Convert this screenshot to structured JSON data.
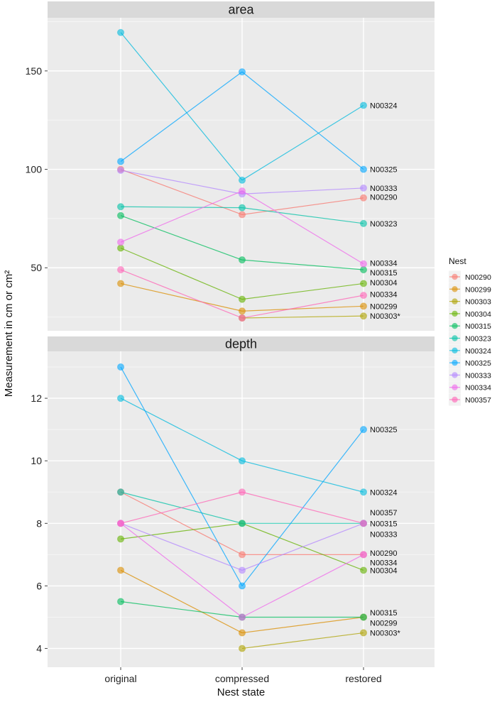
{
  "chart_data": {
    "type": "line",
    "xlabel": "Nest state",
    "ylabel": "Measurement in cm or cm²",
    "categories": [
      "original",
      "compressed",
      "restored"
    ],
    "legend": {
      "title": "Nest",
      "position": "right",
      "entries": [
        "N00290",
        "N00299",
        "N00303",
        "N00304",
        "N00315",
        "N00323",
        "N00324",
        "N00325",
        "N00333",
        "N00334",
        "N00357"
      ]
    },
    "colors": {
      "N00290": "#F8766D",
      "N00299": "#DB8E00",
      "N00303": "#AEA200",
      "N00304": "#64B200",
      "N00315": "#00BD5C",
      "N00323": "#00C1A7",
      "N00324": "#00BADE",
      "N00325": "#00A6FF",
      "N00333": "#B385FF",
      "N00334": "#EF67EB",
      "N00357": "#FF63B6"
    },
    "grid": true,
    "panels": [
      {
        "title": "area",
        "ylim": [
          18,
          177
        ],
        "yticks": [
          50,
          100,
          150
        ],
        "series": [
          {
            "name": "N00290",
            "values": [
              100,
              77,
              85.5
            ]
          },
          {
            "name": "N00299",
            "values": [
              42,
              28,
              30.5
            ]
          },
          {
            "name": "N00303",
            "values": [
              null,
              24.5,
              25.5
            ]
          },
          {
            "name": "N00304",
            "values": [
              60,
              34,
              42
            ]
          },
          {
            "name": "N00315",
            "values": [
              76.5,
              54,
              49
            ]
          },
          {
            "name": "N00323",
            "values": [
              81,
              80.5,
              72.5
            ]
          },
          {
            "name": "N00324",
            "values": [
              169.5,
              94.5,
              132.5
            ]
          },
          {
            "name": "N00325",
            "values": [
              104,
              149.5,
              100
            ]
          },
          {
            "name": "N00333",
            "values": [
              99.5,
              87.5,
              90.5
            ]
          },
          {
            "name": "N00334",
            "values": [
              63,
              89,
              52
            ]
          },
          {
            "name": "N00357",
            "values": [
              49,
              24.5,
              36
            ]
          }
        ],
        "point_labels": [
          {
            "text": "N00324",
            "value": 132.5
          },
          {
            "text": "N00325",
            "value": 100
          },
          {
            "text": "N00333",
            "value": 90.5
          },
          {
            "text": "N00290",
            "value": 86
          },
          {
            "text": "N00323",
            "value": 72.5
          },
          {
            "text": "N00334",
            "value": 52.5
          },
          {
            "text": "N00315",
            "value": 47.5
          },
          {
            "text": "N00304",
            "value": 42.5
          },
          {
            "text": "N00334",
            "value": 36.5
          },
          {
            "text": "N00299",
            "value": 30.5
          },
          {
            "text": "N00303*",
            "value": 25.5
          }
        ]
      },
      {
        "title": "depth",
        "ylim": [
          3.4,
          13.5
        ],
        "yticks": [
          4,
          6,
          8,
          10,
          12
        ],
        "series": [
          {
            "name": "N00290",
            "values": [
              9,
              7,
              7
            ]
          },
          {
            "name": "N00299",
            "values": [
              6.5,
              4.5,
              5
            ]
          },
          {
            "name": "N00303",
            "values": [
              null,
              4,
              4.5
            ]
          },
          {
            "name": "N00304",
            "values": [
              7.5,
              8,
              6.5
            ]
          },
          {
            "name": "N00315",
            "values": [
              5.5,
              5,
              5
            ]
          },
          {
            "name": "N00323",
            "values": [
              9,
              8,
              8
            ]
          },
          {
            "name": "N00324",
            "values": [
              12,
              10,
              9
            ]
          },
          {
            "name": "N00325",
            "values": [
              13,
              6,
              11
            ]
          },
          {
            "name": "N00333",
            "values": [
              8,
              6.5,
              8
            ]
          },
          {
            "name": "N00334",
            "values": [
              8,
              5,
              7
            ]
          },
          {
            "name": "N00357",
            "values": [
              8,
              9,
              8
            ]
          }
        ],
        "point_labels": [
          {
            "text": "N00325",
            "value": 11
          },
          {
            "text": "N00324",
            "value": 9
          },
          {
            "text": "N00357",
            "value": 8.35
          },
          {
            "text": "N00315",
            "value": 8
          },
          {
            "text": "N00333",
            "value": 7.65
          },
          {
            "text": "N00290",
            "value": 7.05
          },
          {
            "text": "N00334",
            "value": 6.75
          },
          {
            "text": "N00304",
            "value": 6.5
          },
          {
            "text": "N00315",
            "value": 5.15
          },
          {
            "text": "N00299",
            "value": 4.82
          },
          {
            "text": "N00303*",
            "value": 4.5
          }
        ]
      }
    ]
  }
}
